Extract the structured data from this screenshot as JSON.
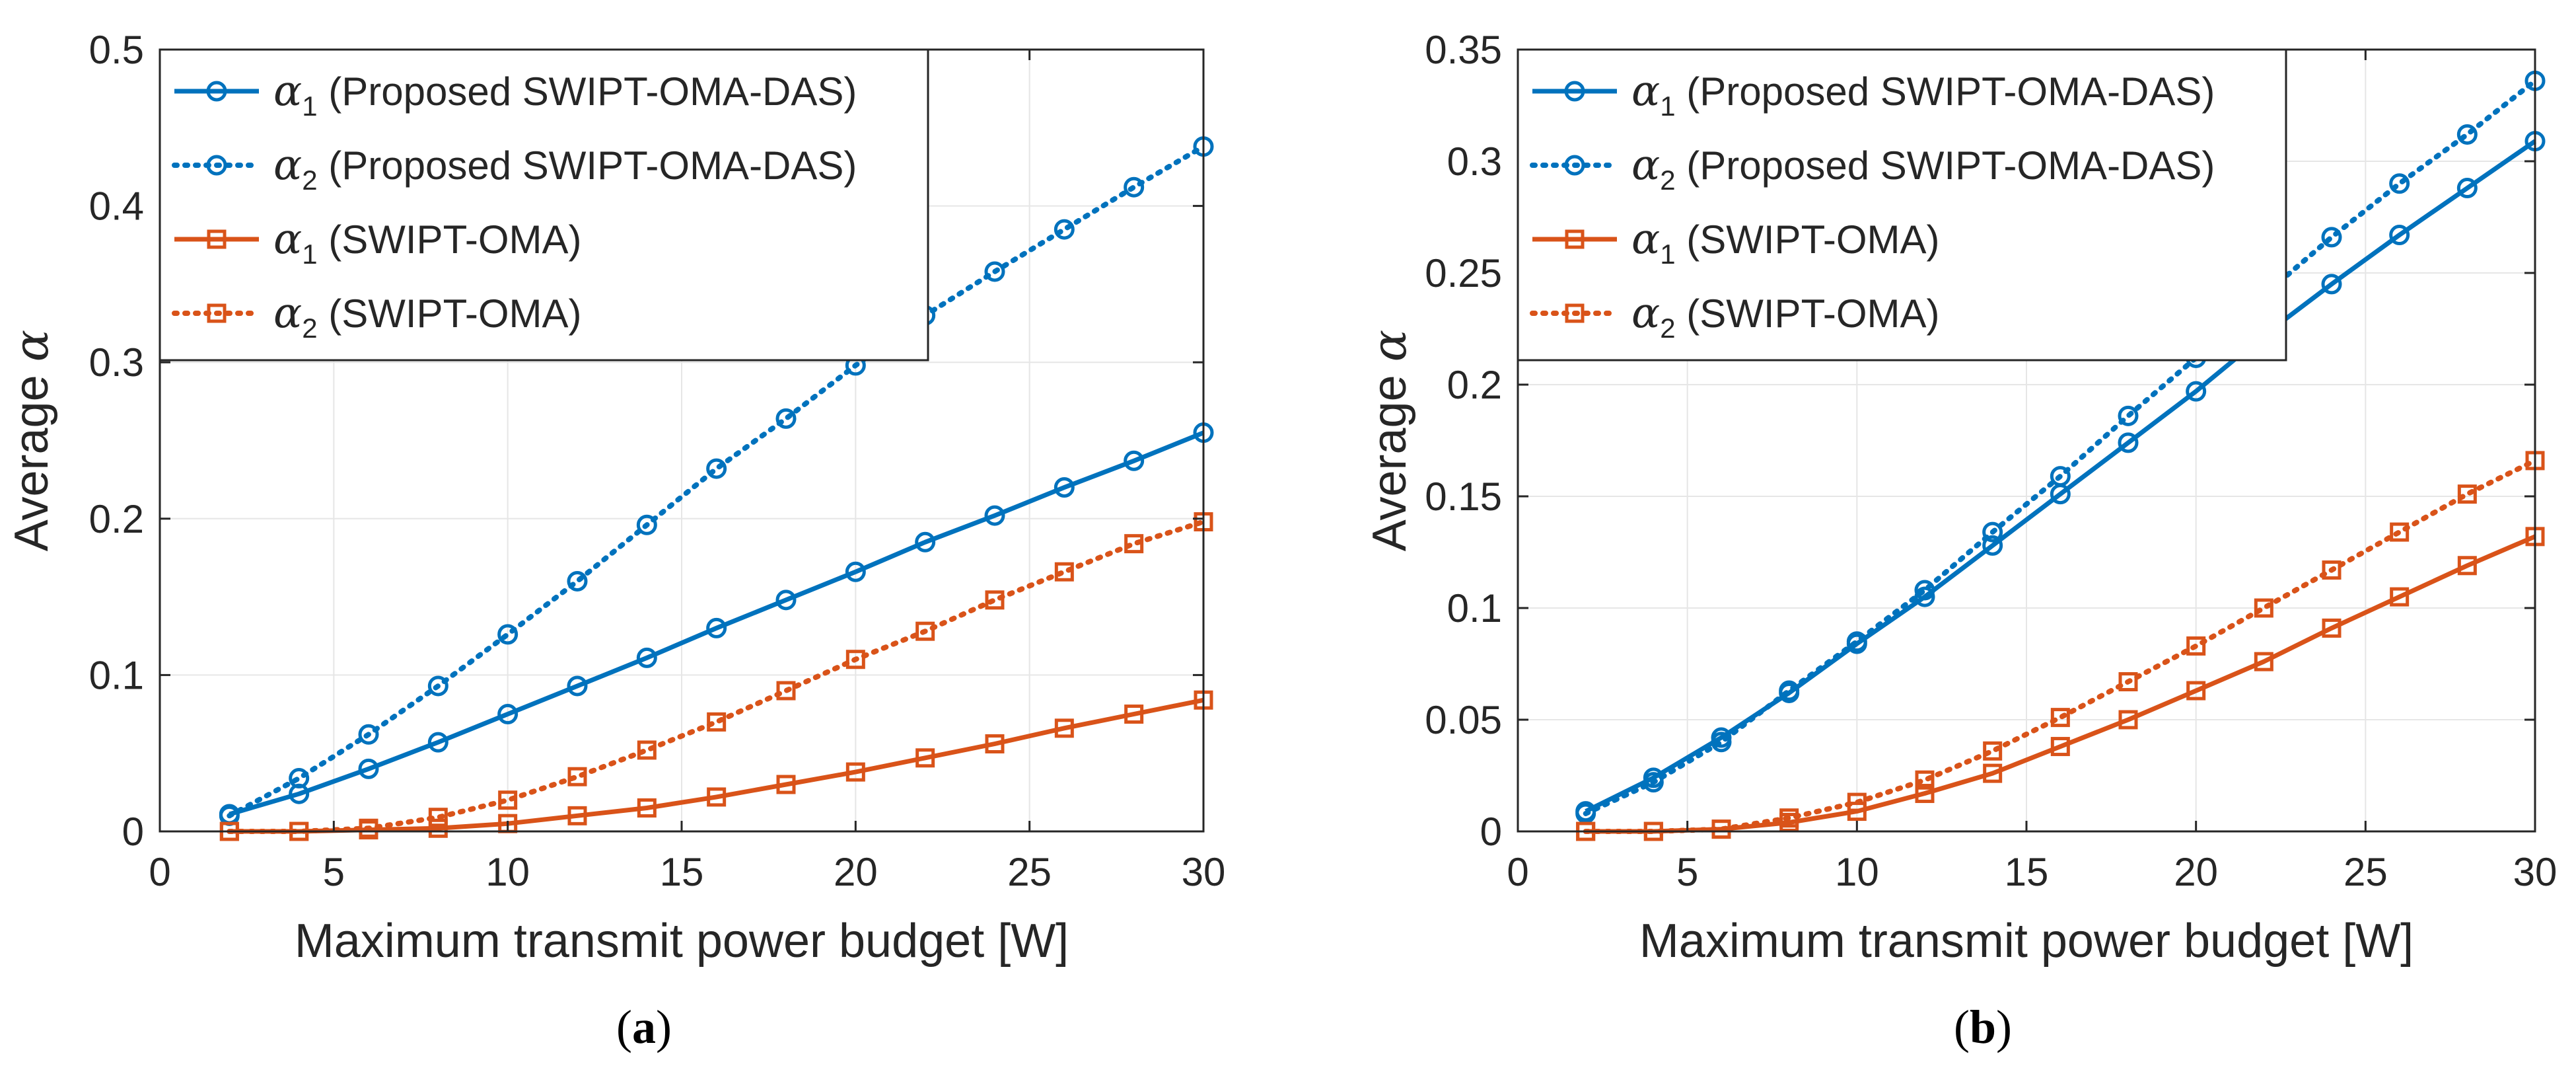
{
  "colors": {
    "proposed": "#0072BD",
    "baseline": "#D95319",
    "grid": "#E6E6E6",
    "axis": "#262626"
  },
  "chart_data": [
    {
      "type": "line",
      "panel_label": "(a)",
      "xlabel": "Maximum transmit power budget [W]",
      "ylabel": "Average α",
      "xlim": [
        0,
        30
      ],
      "ylim": [
        0,
        0.5
      ],
      "xticks": [
        0,
        5,
        10,
        15,
        20,
        25,
        30
      ],
      "xtick_labels": [
        "0",
        "5",
        "10",
        "15",
        "20",
        "25",
        "30"
      ],
      "yticks": [
        0,
        0.1,
        0.2,
        0.3,
        0.4,
        0.5
      ],
      "ytick_labels": [
        "0",
        "0.1",
        "0.2",
        "0.3",
        "0.4",
        "0.5"
      ],
      "grid": true,
      "legend_position": "top-left",
      "x": [
        2,
        4,
        6,
        8,
        10,
        12,
        14,
        16,
        18,
        20,
        22,
        24,
        26,
        28,
        30
      ],
      "series": [
        {
          "name": "α1 (Proposed SWIPT-OMA-DAS)",
          "symbol": "α",
          "sub": "1",
          "label_rest": " (Proposed SWIPT-OMA-DAS)",
          "color": "proposed",
          "line": "solid",
          "marker": "circle",
          "values": [
            0.011,
            0.024,
            0.04,
            0.057,
            0.075,
            0.093,
            0.111,
            0.13,
            0.148,
            0.166,
            0.185,
            0.202,
            0.22,
            0.237,
            0.255
          ]
        },
        {
          "name": "α2 (Proposed SWIPT-OMA-DAS)",
          "symbol": "α",
          "sub": "2",
          "label_rest": " (Proposed SWIPT-OMA-DAS)",
          "color": "proposed",
          "line": "dotted",
          "marker": "circle",
          "values": [
            0.01,
            0.034,
            0.062,
            0.093,
            0.126,
            0.16,
            0.196,
            0.232,
            0.264,
            0.298,
            0.33,
            0.358,
            0.385,
            0.412,
            0.438
          ]
        },
        {
          "name": "α1 (SWIPT-OMA)",
          "symbol": "α",
          "sub": "1",
          "label_rest": " (SWIPT-OMA)",
          "color": "baseline",
          "line": "solid",
          "marker": "square",
          "values": [
            0.0,
            0.0,
            0.001,
            0.002,
            0.005,
            0.01,
            0.015,
            0.022,
            0.03,
            0.038,
            0.047,
            0.056,
            0.066,
            0.075,
            0.084
          ]
        },
        {
          "name": "α2 (SWIPT-OMA)",
          "symbol": "α",
          "sub": "2",
          "label_rest": " (SWIPT-OMA)",
          "color": "baseline",
          "line": "dotted",
          "marker": "square",
          "values": [
            0.0,
            0.0,
            0.002,
            0.009,
            0.02,
            0.035,
            0.052,
            0.07,
            0.09,
            0.11,
            0.128,
            0.148,
            0.166,
            0.184,
            0.198
          ]
        }
      ]
    },
    {
      "type": "line",
      "panel_label": "(b)",
      "xlabel": "Maximum transmit power budget [W]",
      "ylabel": "Average α",
      "xlim": [
        0,
        30
      ],
      "ylim": [
        0,
        0.35
      ],
      "xticks": [
        0,
        5,
        10,
        15,
        20,
        25,
        30
      ],
      "xtick_labels": [
        "0",
        "5",
        "10",
        "15",
        "20",
        "25",
        "30"
      ],
      "yticks": [
        0,
        0.05,
        0.1,
        0.15,
        0.2,
        0.25,
        0.3,
        0.35
      ],
      "ytick_labels": [
        "0",
        "0.05",
        "0.1",
        "0.15",
        "0.2",
        "0.25",
        "0.3",
        "0.35"
      ],
      "grid": true,
      "legend_position": "top-left",
      "x": [
        2,
        4,
        6,
        8,
        10,
        12,
        14,
        16,
        18,
        20,
        22,
        24,
        26,
        28,
        30
      ],
      "series": [
        {
          "name": "α1 (Proposed SWIPT-OMA-DAS)",
          "symbol": "α",
          "sub": "1",
          "label_rest": " (Proposed SWIPT-OMA-DAS)",
          "color": "proposed",
          "line": "solid",
          "marker": "circle",
          "values": [
            0.009,
            0.024,
            0.042,
            0.062,
            0.084,
            0.105,
            0.128,
            0.151,
            0.174,
            0.197,
            0.222,
            0.245,
            0.267,
            0.288,
            0.309
          ]
        },
        {
          "name": "α2 (Proposed SWIPT-OMA-DAS)",
          "symbol": "α",
          "sub": "2",
          "label_rest": " (Proposed SWIPT-OMA-DAS)",
          "color": "proposed",
          "line": "dotted",
          "marker": "circle",
          "values": [
            0.008,
            0.022,
            0.04,
            0.063,
            0.085,
            0.108,
            0.134,
            0.159,
            0.186,
            0.212,
            0.24,
            0.266,
            0.29,
            0.312,
            0.336
          ]
        },
        {
          "name": "α1 (SWIPT-OMA)",
          "symbol": "α",
          "sub": "1",
          "label_rest": " (SWIPT-OMA)",
          "color": "baseline",
          "line": "solid",
          "marker": "square",
          "values": [
            0.0,
            0.0,
            0.001,
            0.004,
            0.009,
            0.017,
            0.026,
            0.038,
            0.05,
            0.063,
            0.076,
            0.091,
            0.105,
            0.119,
            0.132
          ]
        },
        {
          "name": "α2 (SWIPT-OMA)",
          "symbol": "α",
          "sub": "2",
          "label_rest": " (SWIPT-OMA)",
          "color": "baseline",
          "line": "dotted",
          "marker": "square",
          "values": [
            0.0,
            0.0,
            0.001,
            0.006,
            0.013,
            0.023,
            0.036,
            0.051,
            0.067,
            0.083,
            0.1,
            0.117,
            0.134,
            0.151,
            0.166
          ]
        }
      ]
    }
  ]
}
